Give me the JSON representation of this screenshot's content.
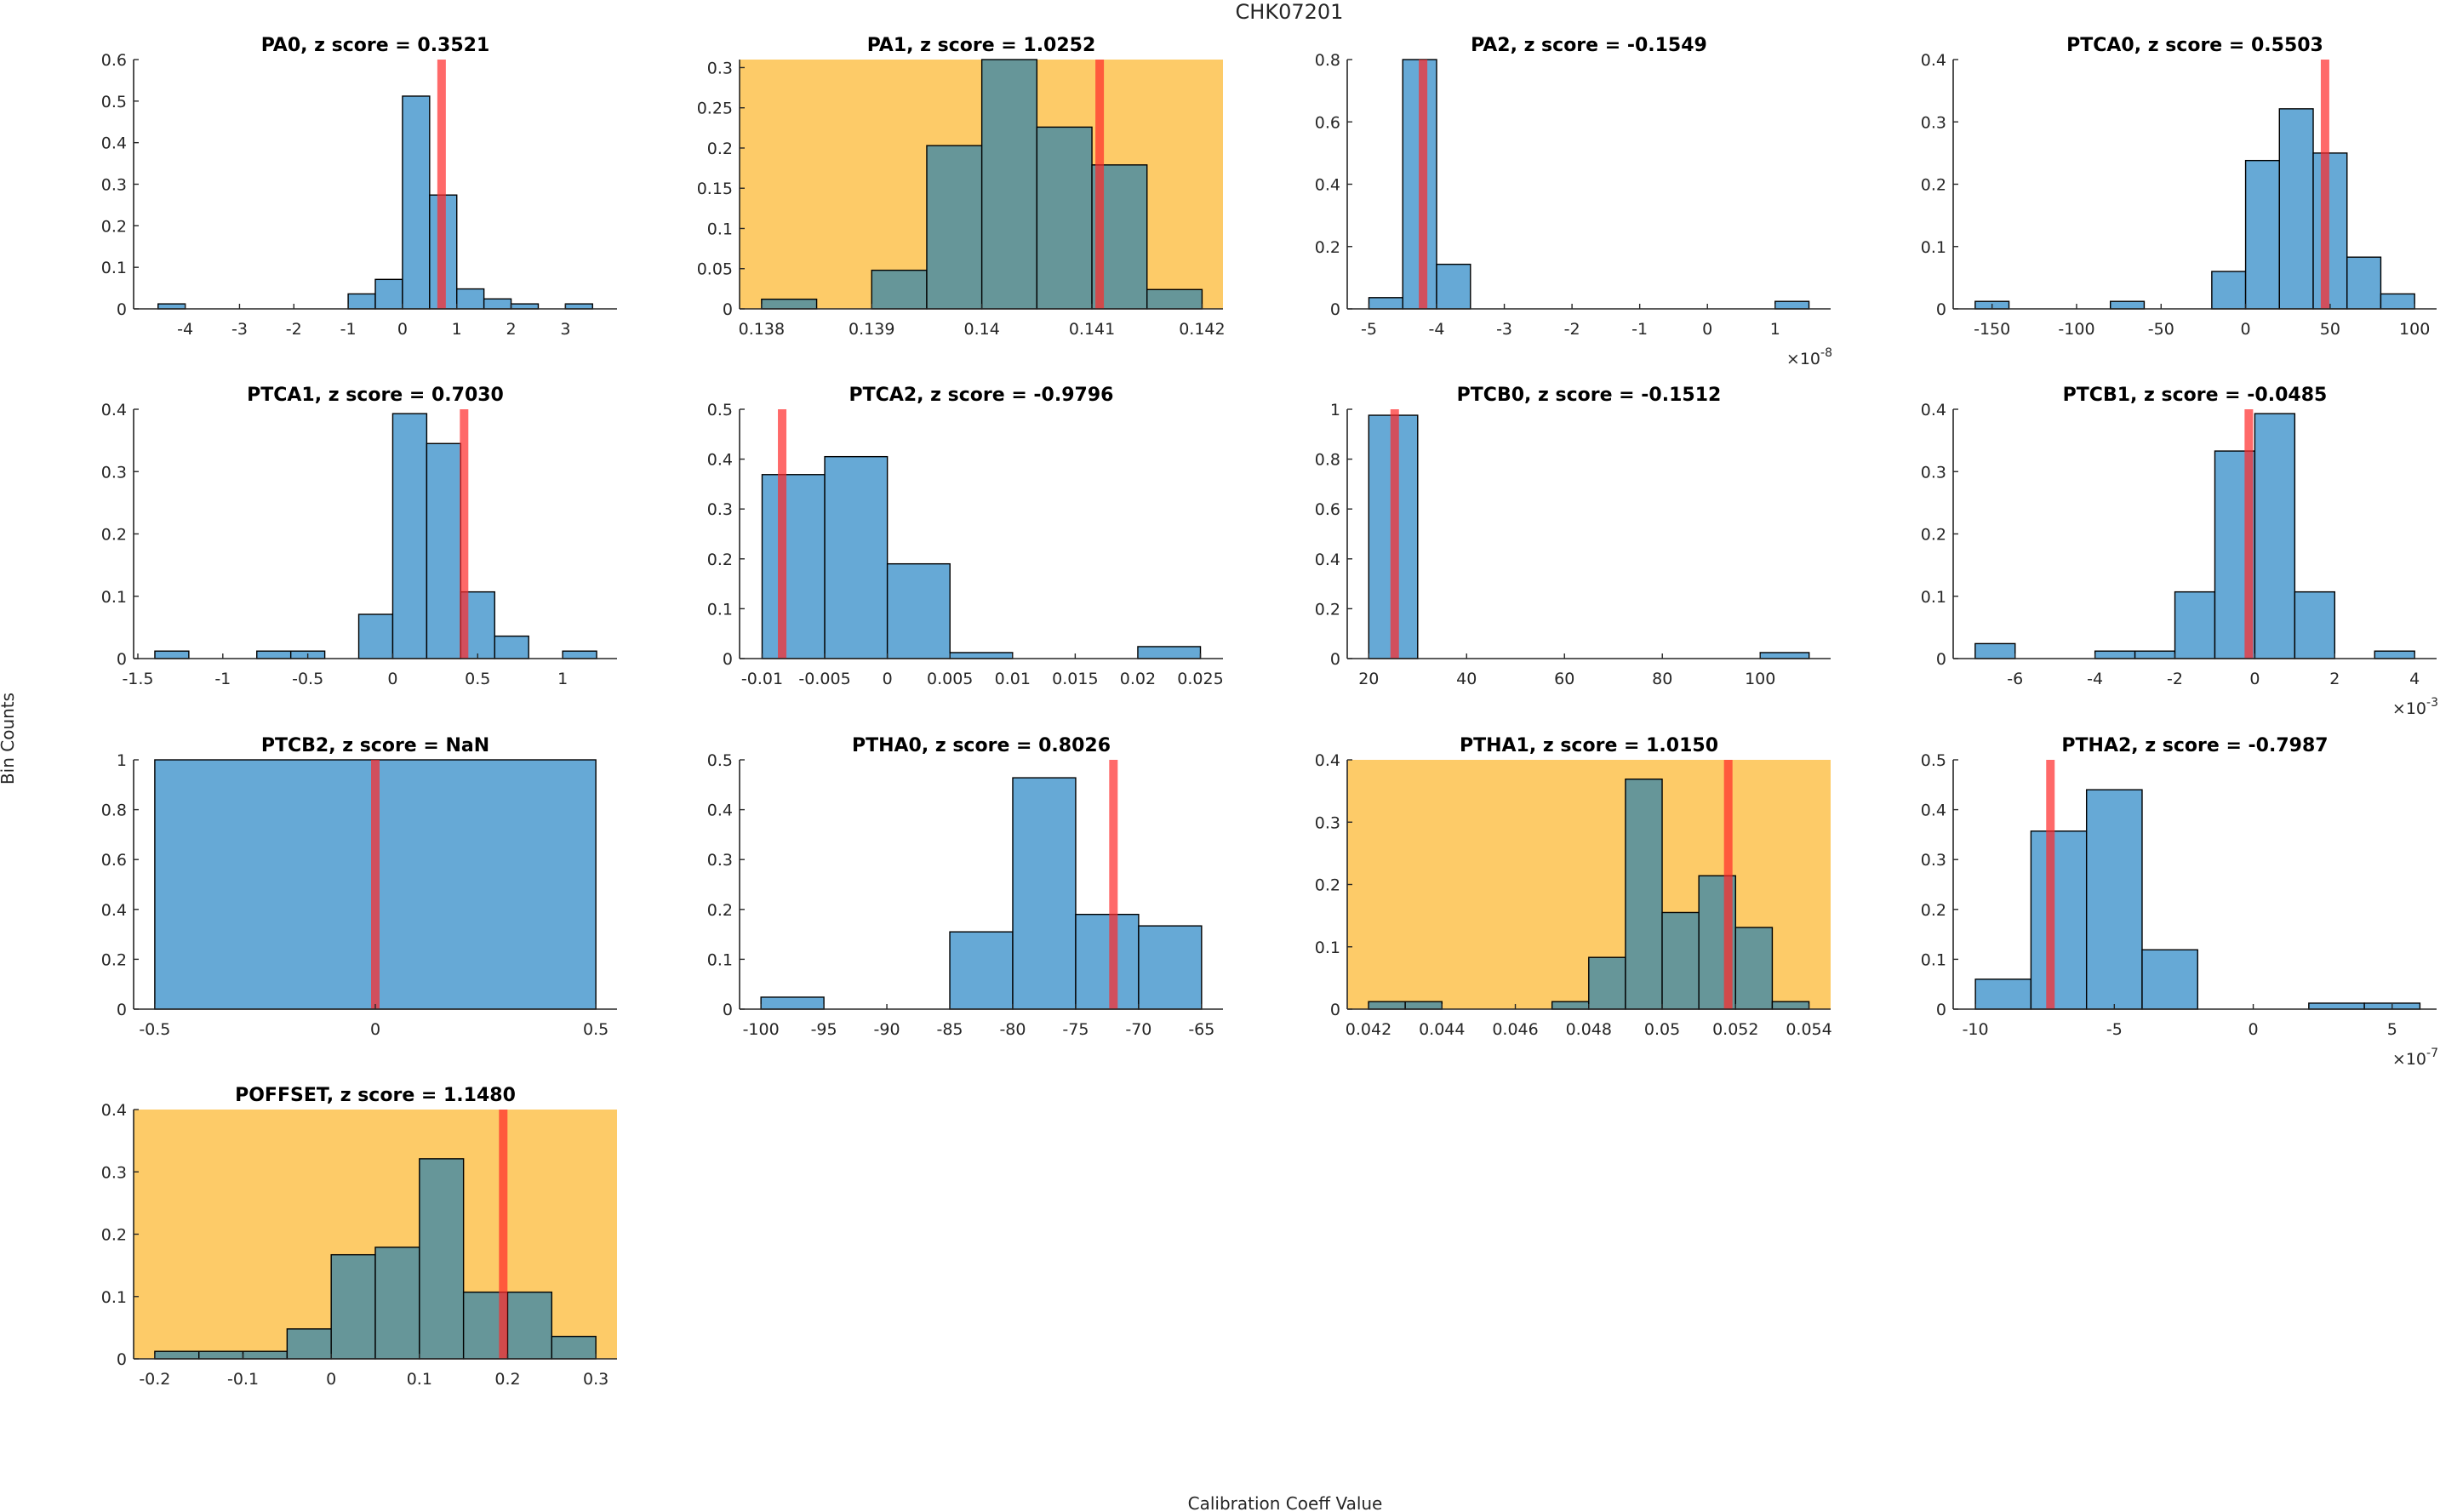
{
  "figure": {
    "suptitle": "CHK07201",
    "ylabel": "Bin Counts",
    "xlabel": "Calibration Coeff Value",
    "colors": {
      "bar_normal": "#66a9d6",
      "bar_flagged": "#669699",
      "flag_background": "#fdcb68",
      "marker": "#ff2a2a"
    }
  },
  "chart_data": [
    {
      "type": "bar",
      "title": "PA0, z score = 0.3521",
      "flagged": false,
      "bin_edges": [
        -4.5,
        -4,
        -3.5,
        -3,
        -2.5,
        -2,
        -1.5,
        -1,
        -0.5,
        0,
        0.5,
        1,
        1.5,
        2,
        2.5,
        3,
        3.5
      ],
      "values": [
        0.012,
        0,
        0,
        0,
        0,
        0,
        0,
        0.036,
        0.071,
        0.512,
        0.274,
        0.048,
        0.024,
        0.012,
        0,
        0.012
      ],
      "marker_x": 0.72,
      "xlim": [
        -4.95,
        3.95
      ],
      "ylim": [
        0,
        0.6
      ],
      "xticks": [
        -4,
        -3,
        -2,
        -1,
        0,
        1,
        2,
        3
      ],
      "xticklabels": [
        "-4",
        "-3",
        "-2",
        "-1",
        "0",
        "1",
        "2",
        "3"
      ],
      "yticks": [
        0,
        0.1,
        0.2,
        0.3,
        0.4,
        0.5,
        0.6
      ],
      "yticklabels": [
        "0",
        "0.1",
        "0.2",
        "0.3",
        "0.4",
        "0.5",
        "0.6"
      ],
      "exponent": ""
    },
    {
      "type": "bar",
      "title": "PA1, z score = 1.0252",
      "flagged": true,
      "bin_edges": [
        0.138,
        0.1385,
        0.139,
        0.1395,
        0.14,
        0.1405,
        0.141,
        0.1415,
        0.142
      ],
      "values": [
        0.012,
        0,
        0.048,
        0.203,
        0.31,
        0.226,
        0.179,
        0.024
      ],
      "marker_x": 0.14107,
      "xlim": [
        0.1378,
        0.14219
      ],
      "ylim": [
        0,
        0.31
      ],
      "xticks": [
        0.138,
        0.139,
        0.14,
        0.141,
        0.142
      ],
      "xticklabels": [
        "0.138",
        "0.139",
        "0.14",
        "0.141",
        "0.142"
      ],
      "yticks": [
        0,
        0.05,
        0.1,
        0.15,
        0.2,
        0.25,
        0.3
      ],
      "yticklabels": [
        "0",
        "0.05",
        "0.1",
        "0.15",
        "0.2",
        "0.25",
        "0.3"
      ],
      "exponent": ""
    },
    {
      "type": "bar",
      "title": "PA2, z score = -0.1549",
      "flagged": false,
      "bin_edges": [
        -5,
        -4.5,
        -4,
        -3.5,
        -3,
        -2.5,
        -2,
        -1.5,
        -1,
        -0.5,
        0,
        0.5,
        1,
        1.5
      ],
      "values": [
        0.036,
        0.8,
        0.143,
        0,
        0,
        0,
        0,
        0,
        0,
        0,
        0,
        0,
        0.024
      ],
      "marker_x": -4.2,
      "xlim": [
        -5.32,
        1.82
      ],
      "ylim": [
        0,
        0.8
      ],
      "xticks": [
        -5,
        -4,
        -3,
        -2,
        -1,
        0,
        1
      ],
      "xticklabels": [
        "-5",
        "-4",
        "-3",
        "-2",
        "-1",
        "0",
        "1"
      ],
      "yticks": [
        0,
        0.2,
        0.4,
        0.6,
        0.8
      ],
      "yticklabels": [
        "0",
        "0.2",
        "0.4",
        "0.6",
        "0.8"
      ],
      "exponent": "-8"
    },
    {
      "type": "bar",
      "title": "PTCA0, z score = 0.5503",
      "flagged": false,
      "bin_edges": [
        -160,
        -140,
        -120,
        -100,
        -80,
        -60,
        -40,
        -20,
        0,
        20,
        40,
        60,
        80,
        100
      ],
      "values": [
        0.012,
        0,
        0,
        0,
        0.012,
        0,
        0,
        0.06,
        0.238,
        0.321,
        0.25,
        0.083,
        0.024
      ],
      "marker_x": 47,
      "xlim": [
        -173,
        113
      ],
      "ylim": [
        0,
        0.4
      ],
      "xticks": [
        -150,
        -100,
        -50,
        0,
        50,
        100
      ],
      "xticklabels": [
        "-150",
        "-100",
        "-50",
        "0",
        "50",
        "100"
      ],
      "yticks": [
        0,
        0.1,
        0.2,
        0.3,
        0.4
      ],
      "yticklabels": [
        "0",
        "0.1",
        "0.2",
        "0.3",
        "0.4"
      ],
      "exponent": ""
    },
    {
      "type": "bar",
      "title": "PTCA1, z score = 0.7030",
      "flagged": false,
      "bin_edges": [
        -1.4,
        -1.2,
        -1,
        -0.8,
        -0.6,
        -0.4,
        -0.2,
        0,
        0.2,
        0.4,
        0.6,
        0.8,
        1,
        1.2
      ],
      "values": [
        0.012,
        0,
        0,
        0.012,
        0.012,
        0,
        0.071,
        0.393,
        0.345,
        0.107,
        0.036,
        0,
        0.012
      ],
      "marker_x": 0.42,
      "xlim": [
        -1.525,
        1.32
      ],
      "ylim": [
        0,
        0.4
      ],
      "xticks": [
        -1.5,
        -1,
        -0.5,
        0,
        0.5,
        1
      ],
      "xticklabels": [
        "-1.5",
        "-1",
        "-0.5",
        "0",
        "0.5",
        "1"
      ],
      "yticks": [
        0,
        0.1,
        0.2,
        0.3,
        0.4
      ],
      "yticklabels": [
        "0",
        "0.1",
        "0.2",
        "0.3",
        "0.4"
      ],
      "exponent": ""
    },
    {
      "type": "bar",
      "title": "PTCA2, z score = -0.9796",
      "flagged": false,
      "bin_edges": [
        -0.01,
        -0.005,
        0,
        0.005,
        0.01,
        0.015,
        0.02,
        0.025
      ],
      "values": [
        0.369,
        0.405,
        0.19,
        0.012,
        0,
        0,
        0.024
      ],
      "marker_x": -0.0084,
      "xlim": [
        -0.0118,
        0.0268
      ],
      "ylim": [
        0,
        0.5
      ],
      "xticks": [
        -0.01,
        -0.005,
        0,
        0.005,
        0.01,
        0.015,
        0.02,
        0.025
      ],
      "xticklabels": [
        "-0.01",
        "-0.005",
        "0",
        "0.005",
        "0.01",
        "0.015",
        "0.02",
        "0.025"
      ],
      "yticks": [
        0,
        0.1,
        0.2,
        0.3,
        0.4,
        0.5
      ],
      "yticklabels": [
        "0",
        "0.1",
        "0.2",
        "0.3",
        "0.4",
        "0.5"
      ],
      "exponent": ""
    },
    {
      "type": "bar",
      "title": "PTCB0, z score = -0.1512",
      "flagged": false,
      "bin_edges": [
        20,
        30,
        40,
        50,
        60,
        70,
        80,
        90,
        100,
        110
      ],
      "values": [
        0.976,
        0,
        0,
        0,
        0,
        0,
        0,
        0,
        0.024
      ],
      "marker_x": 25.3,
      "xlim": [
        15.6,
        114.4
      ],
      "ylim": [
        0,
        1
      ],
      "xticks": [
        20,
        40,
        60,
        80,
        100
      ],
      "xticklabels": [
        "20",
        "40",
        "60",
        "80",
        "100"
      ],
      "yticks": [
        0,
        0.2,
        0.4,
        0.6,
        0.8,
        1
      ],
      "yticklabels": [
        "0",
        "0.2",
        "0.4",
        "0.6",
        "0.8",
        "1"
      ],
      "exponent": ""
    },
    {
      "type": "bar",
      "title": "PTCB1, z score = -0.0485",
      "flagged": false,
      "bin_edges": [
        -7,
        -6,
        -5,
        -4,
        -3,
        -2,
        -1,
        0,
        1,
        2,
        3,
        4
      ],
      "values": [
        0.024,
        0,
        0,
        0.012,
        0.012,
        0.107,
        0.333,
        0.393,
        0.107,
        0,
        0.012
      ],
      "marker_x": -0.15,
      "xlim": [
        -7.55,
        4.55
      ],
      "ylim": [
        0,
        0.4
      ],
      "xticks": [
        -6,
        -4,
        -2,
        0,
        2,
        4
      ],
      "xticklabels": [
        "-6",
        "-4",
        "-2",
        "0",
        "2",
        "4"
      ],
      "yticks": [
        0,
        0.1,
        0.2,
        0.3,
        0.4
      ],
      "yticklabels": [
        "0",
        "0.1",
        "0.2",
        "0.3",
        "0.4"
      ],
      "exponent": "-3"
    },
    {
      "type": "bar",
      "title": "PTCB2, z score = NaN",
      "flagged": false,
      "bin_edges": [
        -0.5,
        0.5
      ],
      "values": [
        1
      ],
      "marker_x": 0,
      "xlim": [
        -0.548,
        0.548
      ],
      "ylim": [
        0,
        1
      ],
      "xticks": [
        -0.5,
        0,
        0.5
      ],
      "xticklabels": [
        "-0.5",
        "0",
        "0.5"
      ],
      "yticks": [
        0,
        0.2,
        0.4,
        0.6,
        0.8,
        1
      ],
      "yticklabels": [
        "0",
        "0.2",
        "0.4",
        "0.6",
        "0.8",
        "1"
      ],
      "exponent": ""
    },
    {
      "type": "bar",
      "title": "PTHA0, z score = 0.8026",
      "flagged": false,
      "bin_edges": [
        -100,
        -95,
        -90,
        -85,
        -80,
        -75,
        -70,
        -65
      ],
      "values": [
        0.024,
        0,
        0,
        0.155,
        0.464,
        0.19,
        0.167
      ],
      "marker_x": -72,
      "xlim": [
        -101.7,
        -63.3
      ],
      "ylim": [
        0,
        0.5
      ],
      "xticks": [
        -100,
        -95,
        -90,
        -85,
        -80,
        -75,
        -70,
        -65
      ],
      "xticklabels": [
        "-100",
        "-95",
        "-90",
        "-85",
        "-80",
        "-75",
        "-70",
        "-65"
      ],
      "yticks": [
        0,
        0.1,
        0.2,
        0.3,
        0.4,
        0.5
      ],
      "yticklabels": [
        "0",
        "0.1",
        "0.2",
        "0.3",
        "0.4",
        "0.5"
      ],
      "exponent": ""
    },
    {
      "type": "bar",
      "title": "PTHA1, z score = 1.0150",
      "flagged": true,
      "bin_edges": [
        0.042,
        0.043,
        0.044,
        0.045,
        0.046,
        0.047,
        0.048,
        0.049,
        0.05,
        0.051,
        0.052,
        0.053,
        0.054
      ],
      "values": [
        0.012,
        0.012,
        0,
        0,
        0,
        0.012,
        0.083,
        0.369,
        0.155,
        0.214,
        0.131,
        0.012
      ],
      "marker_x": 0.0518,
      "xlim": [
        0.04142,
        0.05459
      ],
      "ylim": [
        0,
        0.4
      ],
      "xticks": [
        0.042,
        0.044,
        0.046,
        0.048,
        0.05,
        0.052,
        0.054
      ],
      "xticklabels": [
        "0.042",
        "0.044",
        "0.046",
        "0.048",
        "0.05",
        "0.052",
        "0.054"
      ],
      "yticks": [
        0,
        0.1,
        0.2,
        0.3,
        0.4
      ],
      "yticklabels": [
        "0",
        "0.1",
        "0.2",
        "0.3",
        "0.4"
      ],
      "exponent": ""
    },
    {
      "type": "bar",
      "title": "PTHA2, z score = -0.7987",
      "flagged": false,
      "bin_edges": [
        -10,
        -8,
        -6,
        -4,
        -2,
        0,
        2,
        4,
        6
      ],
      "values": [
        0.06,
        0.357,
        0.44,
        0.119,
        0,
        0,
        0.012,
        0.012
      ],
      "marker_x": -7.3,
      "xlim": [
        -10.8,
        6.6
      ],
      "ylim": [
        0,
        0.5
      ],
      "xticks": [
        -10,
        -5,
        0,
        5
      ],
      "xticklabels": [
        "-10",
        "-5",
        "0",
        "5"
      ],
      "yticks": [
        0,
        0.1,
        0.2,
        0.3,
        0.4,
        0.5
      ],
      "yticklabels": [
        "0",
        "0.1",
        "0.2",
        "0.3",
        "0.4",
        "0.5"
      ],
      "exponent": "-7"
    },
    {
      "type": "bar",
      "title": "POFFSET, z score = 1.1480",
      "flagged": true,
      "bin_edges": [
        -0.2,
        -0.15,
        -0.1,
        -0.05,
        0,
        0.05,
        0.1,
        0.15,
        0.2,
        0.25,
        0.3
      ],
      "values": [
        0.012,
        0.012,
        0.012,
        0.048,
        0.167,
        0.179,
        0.321,
        0.107,
        0.107,
        0.036
      ],
      "marker_x": 0.195,
      "xlim": [
        -0.224,
        0.324
      ],
      "ylim": [
        0,
        0.4
      ],
      "xticks": [
        -0.2,
        -0.1,
        0,
        0.1,
        0.2,
        0.3
      ],
      "xticklabels": [
        "-0.2",
        "-0.1",
        "0",
        "0.1",
        "0.2",
        "0.3"
      ],
      "yticks": [
        0,
        0.1,
        0.2,
        0.3,
        0.4
      ],
      "yticklabels": [
        "0",
        "0.1",
        "0.2",
        "0.3",
        "0.4"
      ],
      "exponent": ""
    }
  ]
}
